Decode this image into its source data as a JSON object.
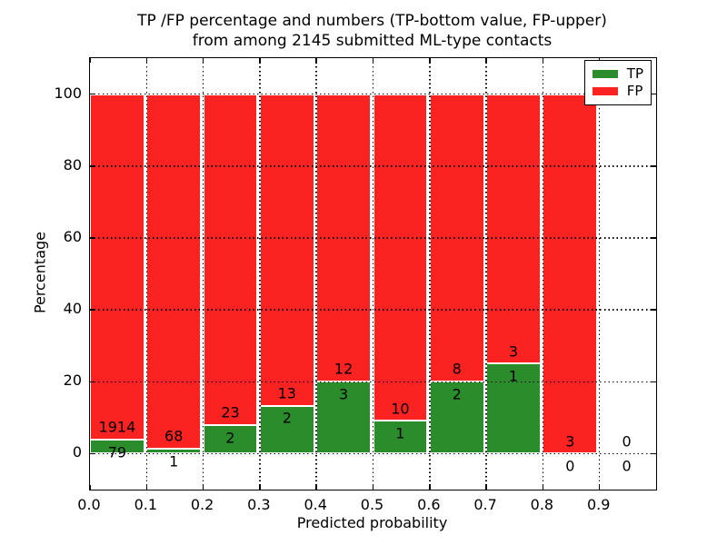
{
  "chart_data": {
    "type": "bar",
    "stacked": true,
    "title_lines": [
      "TP /FP percentage and numbers (TP-bottom value, FP-upper)",
      "from among 2145 submitted ML-type contacts"
    ],
    "xlabel": "Predicted probability",
    "ylabel": "Percentage",
    "xlim": [
      0,
      1.0
    ],
    "ylim": [
      -10,
      110
    ],
    "xticks": [
      {
        "v": 0.0,
        "label": "0.0"
      },
      {
        "v": 0.1,
        "label": "0.1"
      },
      {
        "v": 0.2,
        "label": "0.2"
      },
      {
        "v": 0.3,
        "label": "0.3"
      },
      {
        "v": 0.4,
        "label": "0.4"
      },
      {
        "v": 0.5,
        "label": "0.5"
      },
      {
        "v": 0.6,
        "label": "0.6"
      },
      {
        "v": 0.7,
        "label": "0.7"
      },
      {
        "v": 0.8,
        "label": "0.8"
      },
      {
        "v": 0.9,
        "label": "0.9"
      }
    ],
    "yticks": [
      {
        "v": 0,
        "label": "0"
      },
      {
        "v": 20,
        "label": "20"
      },
      {
        "v": 40,
        "label": "40"
      },
      {
        "v": 60,
        "label": "60"
      },
      {
        "v": 80,
        "label": "80"
      },
      {
        "v": 100,
        "label": "100"
      }
    ],
    "grid": "dotted-black",
    "bar_width_frac": 0.96,
    "bar_edge_color": "#ffffff",
    "series": [
      {
        "name": "TP",
        "color": "#2a8c2a",
        "position": "bottom"
      },
      {
        "name": "FP",
        "color": "#fb2222",
        "position": "top"
      }
    ],
    "legend": {
      "position": "upper-right",
      "entries": [
        {
          "label": "TP",
          "color": "#2a8c2a"
        },
        {
          "label": "FP",
          "color": "#fb2222"
        }
      ]
    },
    "bins": [
      {
        "x0": 0.0,
        "x1": 0.1,
        "tp": 79,
        "fp": 1914
      },
      {
        "x0": 0.1,
        "x1": 0.2,
        "tp": 1,
        "fp": 68
      },
      {
        "x0": 0.2,
        "x1": 0.3,
        "tp": 2,
        "fp": 23
      },
      {
        "x0": 0.3,
        "x1": 0.4,
        "tp": 2,
        "fp": 13
      },
      {
        "x0": 0.4,
        "x1": 0.5,
        "tp": 3,
        "fp": 12
      },
      {
        "x0": 0.5,
        "x1": 0.6,
        "tp": 1,
        "fp": 10
      },
      {
        "x0": 0.6,
        "x1": 0.7,
        "tp": 2,
        "fp": 8
      },
      {
        "x0": 0.7,
        "x1": 0.8,
        "tp": 1,
        "fp": 3
      },
      {
        "x0": 0.8,
        "x1": 0.9,
        "tp": 0,
        "fp": 3
      },
      {
        "x0": 0.9,
        "x1": 1.0,
        "tp": 0,
        "fp": 0
      }
    ],
    "annotation_offsets": {
      "fp": 3.5,
      "tp": -3.5
    }
  }
}
